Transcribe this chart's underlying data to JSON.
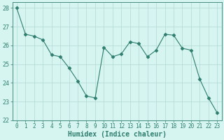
{
  "x": [
    0,
    1,
    2,
    3,
    4,
    5,
    6,
    7,
    8,
    9,
    10,
    11,
    12,
    13,
    14,
    15,
    16,
    17,
    18,
    19,
    20,
    21,
    22,
    23
  ],
  "y": [
    28.0,
    26.6,
    26.5,
    26.3,
    25.5,
    25.4,
    24.8,
    24.1,
    23.3,
    23.2,
    25.9,
    25.4,
    25.55,
    26.2,
    26.1,
    25.4,
    25.75,
    26.6,
    26.55,
    25.85,
    25.75,
    24.2,
    23.2,
    22.4
  ],
  "line_color": "#2e7d6e",
  "marker": "D",
  "marker_size": 2.5,
  "bg_color": "#d6f5f0",
  "grid_color": "#b8ddd7",
  "xlabel": "Humidex (Indice chaleur)",
  "xlim": [
    -0.5,
    23.5
  ],
  "ylim": [
    22,
    28.3
  ],
  "yticks": [
    22,
    23,
    24,
    25,
    26,
    27,
    28
  ],
  "xticks": [
    0,
    1,
    2,
    3,
    4,
    5,
    6,
    7,
    8,
    9,
    10,
    11,
    12,
    13,
    14,
    15,
    16,
    17,
    18,
    19,
    20,
    21,
    22,
    23
  ],
  "xlabel_fontsize": 7,
  "tick_fontsize": 5.5,
  "ytick_fontsize": 6.0
}
